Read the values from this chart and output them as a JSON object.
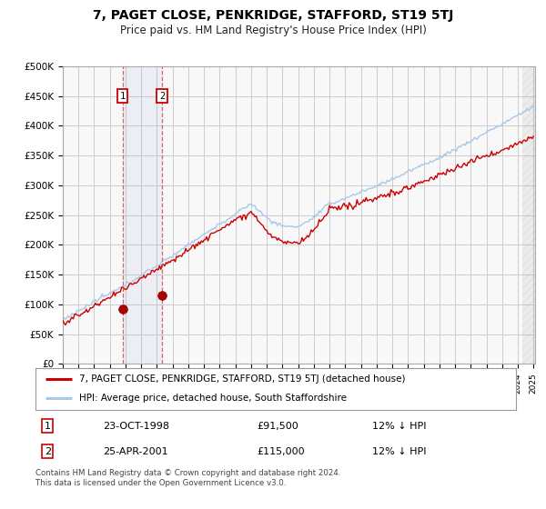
{
  "title": "7, PAGET CLOSE, PENKRIDGE, STAFFORD, ST19 5TJ",
  "subtitle": "Price paid vs. HM Land Registry's House Price Index (HPI)",
  "ylim": [
    0,
    500000
  ],
  "yticks": [
    0,
    50000,
    100000,
    150000,
    200000,
    250000,
    300000,
    350000,
    400000,
    450000,
    500000
  ],
  "ytick_labels": [
    "£0",
    "£50K",
    "£100K",
    "£150K",
    "£200K",
    "£250K",
    "£300K",
    "£350K",
    "£400K",
    "£450K",
    "£500K"
  ],
  "x_start_year": 1995,
  "x_end_year": 2025,
  "sale1_date": 1998.81,
  "sale1_price": 91500,
  "sale2_date": 2001.32,
  "sale2_price": 115000,
  "sale1_date_str": "23-OCT-1998",
  "sale1_price_str": "£91,500",
  "sale1_hpi_str": "12% ↓ HPI",
  "sale2_date_str": "25-APR-2001",
  "sale2_price_str": "£115,000",
  "sale2_hpi_str": "12% ↓ HPI",
  "hpi_color": "#aac8e8",
  "price_color": "#cc0000",
  "legend_label_price": "7, PAGET CLOSE, PENKRIDGE, STAFFORD, ST19 5TJ (detached house)",
  "legend_label_hpi": "HPI: Average price, detached house, South Staffordshire",
  "footer": "Contains HM Land Registry data © Crown copyright and database right 2024.\nThis data is licensed under the Open Government Licence v3.0.",
  "background_color": "#ffffff",
  "grid_color": "#cccccc",
  "hatch_color": "#cccccc"
}
